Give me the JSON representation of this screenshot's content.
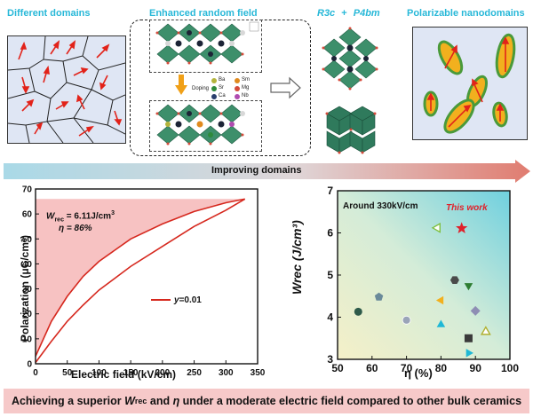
{
  "top_panel": {
    "titles": {
      "different_domains": "Different domains",
      "enhanced_random_field": "Enhanced random field",
      "phase_left": "R3c",
      "phase_plus": "+",
      "phase_right": "P4bm",
      "polarizable_nanodomains": "Polarizable nanodomains"
    },
    "doping_label": "Doping",
    "legend_elements": [
      {
        "symbol": "Ba",
        "color": "#b4b43c"
      },
      {
        "symbol": "Sm",
        "color": "#e08a1e"
      },
      {
        "symbol": "Sr",
        "color": "#2d8a3c"
      },
      {
        "symbol": "Mg",
        "color": "#d44a3a"
      },
      {
        "symbol": "Ca",
        "color": "#2a3f6e"
      },
      {
        "symbol": "Nb",
        "color": "#b04bb0"
      }
    ],
    "improving_label": "Improving domains"
  },
  "pe_chart": {
    "annotation_w": "W",
    "annotation_w_sub": "rec",
    "annotation_w_value": " = 6.11J/cm",
    "annotation_w_sup": "3",
    "annotation_eta": "η = 86%",
    "legend_label_var": "y",
    "legend_label_val": "=0.01",
    "series_color": "#d6281e",
    "fill_color": "#f7c2c2"
  },
  "scatter_chart": {
    "annotation": "Around 330kV/cm",
    "this_work_label": "This work",
    "this_work_color": "#e0202a"
  },
  "chart_data": [
    {
      "type": "line",
      "xlabel": "Electric field (kV/cm)",
      "ylabel": "Polarization (μC/cm²)",
      "xlim": [
        0,
        350
      ],
      "ylim": [
        0,
        70
      ],
      "xticks": [
        0,
        50,
        100,
        150,
        200,
        250,
        300,
        350
      ],
      "yticks": [
        0,
        10,
        20,
        30,
        40,
        50,
        60,
        70
      ],
      "series": [
        {
          "name": "y=0.01",
          "charge": [
            [
              0,
              3
            ],
            [
              25,
              17
            ],
            [
              50,
              27
            ],
            [
              75,
              35
            ],
            [
              100,
              41
            ],
            [
              150,
              50
            ],
            [
              200,
              56
            ],
            [
              250,
              61
            ],
            [
              300,
              64.5
            ],
            [
              330,
              66
            ]
          ],
          "discharge": [
            [
              0,
              0.5
            ],
            [
              25,
              9
            ],
            [
              50,
              17
            ],
            [
              75,
              23.5
            ],
            [
              100,
              29.5
            ],
            [
              150,
              39
            ],
            [
              200,
              47
            ],
            [
              250,
              55
            ],
            [
              300,
              61.5
            ],
            [
              330,
              66
            ]
          ]
        }
      ]
    },
    {
      "type": "scatter",
      "xlabel": "η (%)",
      "ylabel": "Wrec (J/cm³)",
      "xlim": [
        50,
        100
      ],
      "ylim": [
        3,
        7
      ],
      "xticks": [
        50,
        60,
        70,
        80,
        90,
        100
      ],
      "yticks": [
        3,
        4,
        5,
        6,
        7
      ],
      "points": [
        {
          "x": 56,
          "y": 4.13,
          "shape": "circle",
          "color": "#2e5a4a"
        },
        {
          "x": 62,
          "y": 4.48,
          "shape": "pentagon",
          "color": "#6a8a9a"
        },
        {
          "x": 70,
          "y": 3.93,
          "shape": "sphere",
          "color": "#9aa4b8"
        },
        {
          "x": 79,
          "y": 6.12,
          "shape": "triangle-left-open",
          "color": "#7fbf3f"
        },
        {
          "x": 80,
          "y": 4.4,
          "shape": "triangle-left",
          "color": "#f2b01e"
        },
        {
          "x": 80,
          "y": 3.82,
          "shape": "triangle-up",
          "color": "#1fb8d6"
        },
        {
          "x": 84,
          "y": 4.88,
          "shape": "hexagon",
          "color": "#4a4a4a"
        },
        {
          "x": 86,
          "y": 6.11,
          "shape": "star",
          "color": "#e0202a"
        },
        {
          "x": 88,
          "y": 4.75,
          "shape": "triangle-down",
          "color": "#2e7d32"
        },
        {
          "x": 88,
          "y": 3.5,
          "shape": "square",
          "color": "#3a3a3a"
        },
        {
          "x": 88,
          "y": 3.15,
          "shape": "triangle-right",
          "color": "#1fb8d6"
        },
        {
          "x": 90,
          "y": 4.15,
          "shape": "diamond",
          "color": "#8e8eb4"
        },
        {
          "x": 93,
          "y": 3.65,
          "shape": "triangle-up-open",
          "color": "#b0b030"
        }
      ]
    }
  ],
  "banner": {
    "part1": "Achieving a superior ",
    "w": "W",
    "w_sub": "rec",
    "part2": " and ",
    "eta": "η",
    "part3": " under a moderate electric field compared to other bulk ceramics"
  }
}
